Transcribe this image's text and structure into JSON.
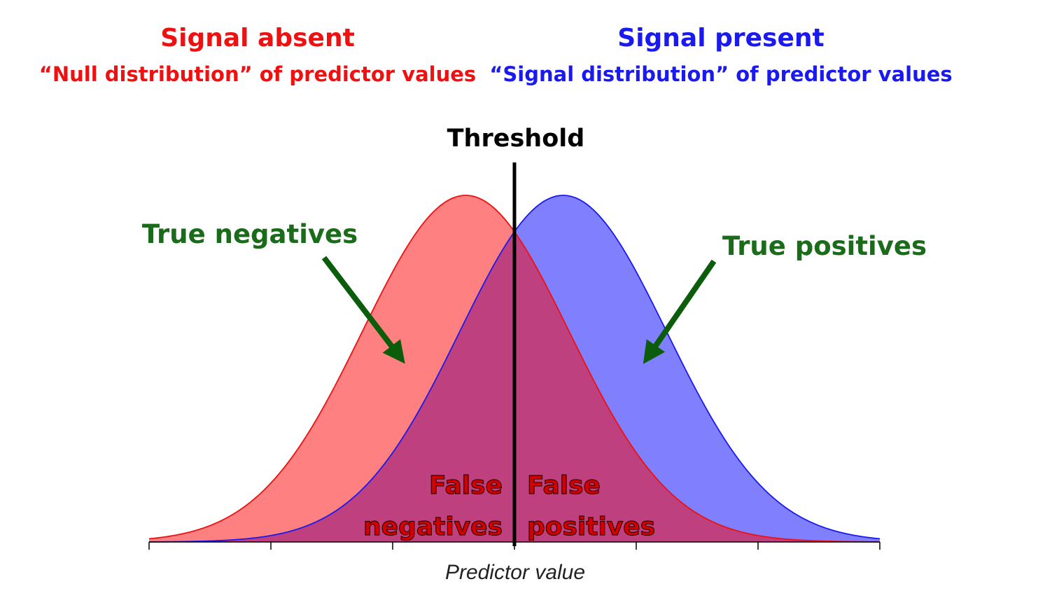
{
  "headers": {
    "absent": {
      "title": "Signal absent",
      "subtitle": "“Null distribution” of predictor values",
      "color": "#ee1111"
    },
    "present": {
      "title": "Signal present",
      "subtitle": "“Signal distribution” of predictor values",
      "color": "#1a1aee"
    }
  },
  "threshold": {
    "label": "Threshold",
    "value": 0
  },
  "annotations": {
    "true_negatives": "True negatives",
    "true_positives": "True positives",
    "false_negatives": [
      "False",
      "negatives"
    ],
    "false_positives": [
      "False",
      "positives"
    ],
    "arrow_color": "#0b5c0b",
    "text_color": "#1a6b1a",
    "false_color": "#d40000"
  },
  "axis": {
    "label": "Predictor value",
    "range": [
      -3,
      3
    ],
    "ticks": [
      -3,
      -2,
      -1,
      0,
      1,
      2,
      3
    ]
  },
  "distributions": {
    "null": {
      "mean": -0.4,
      "sd": 0.85,
      "line": "#ee1111",
      "fill": "#ff8080"
    },
    "signal": {
      "mean": 0.4,
      "sd": 0.85,
      "line": "#1a1aee",
      "fill": "#8080ff"
    },
    "overlap_fill": "#bf407f"
  }
}
